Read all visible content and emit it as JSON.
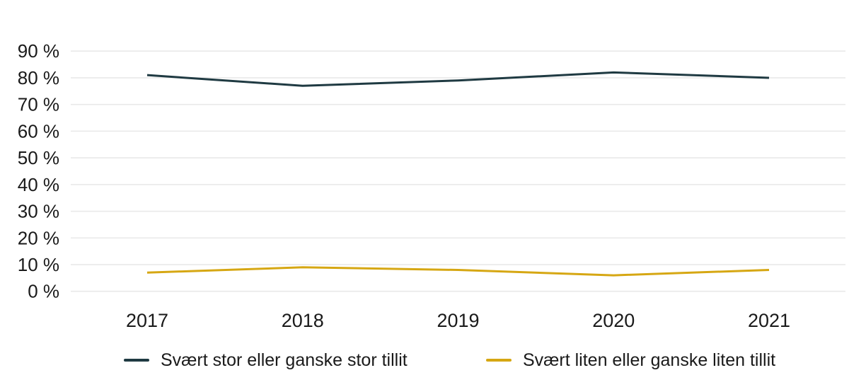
{
  "chart_data": {
    "type": "line",
    "x": [
      "2017",
      "2018",
      "2019",
      "2020",
      "2021"
    ],
    "series": [
      {
        "name": "Svært stor eller ganske stor tillit",
        "color": "#1F3A42",
        "values": [
          81,
          77,
          79,
          82,
          80
        ]
      },
      {
        "name": "Svært liten eller ganske liten tillit",
        "color": "#D6A713",
        "values": [
          7,
          9,
          8,
          6,
          8
        ]
      }
    ],
    "title": "",
    "xlabel": "",
    "ylabel": "",
    "ylim": [
      0,
      90
    ],
    "ytick_labels": [
      "0 %",
      "10 %",
      "20 %",
      "30 %",
      "40 %",
      "50 %",
      "60 %",
      "70 %",
      "80 %",
      "90 %"
    ],
    "grid": "horizontal-only",
    "gridline_color": "#e9e9e9",
    "text_color": "#1a1a1a",
    "legend_position": "bottom"
  }
}
